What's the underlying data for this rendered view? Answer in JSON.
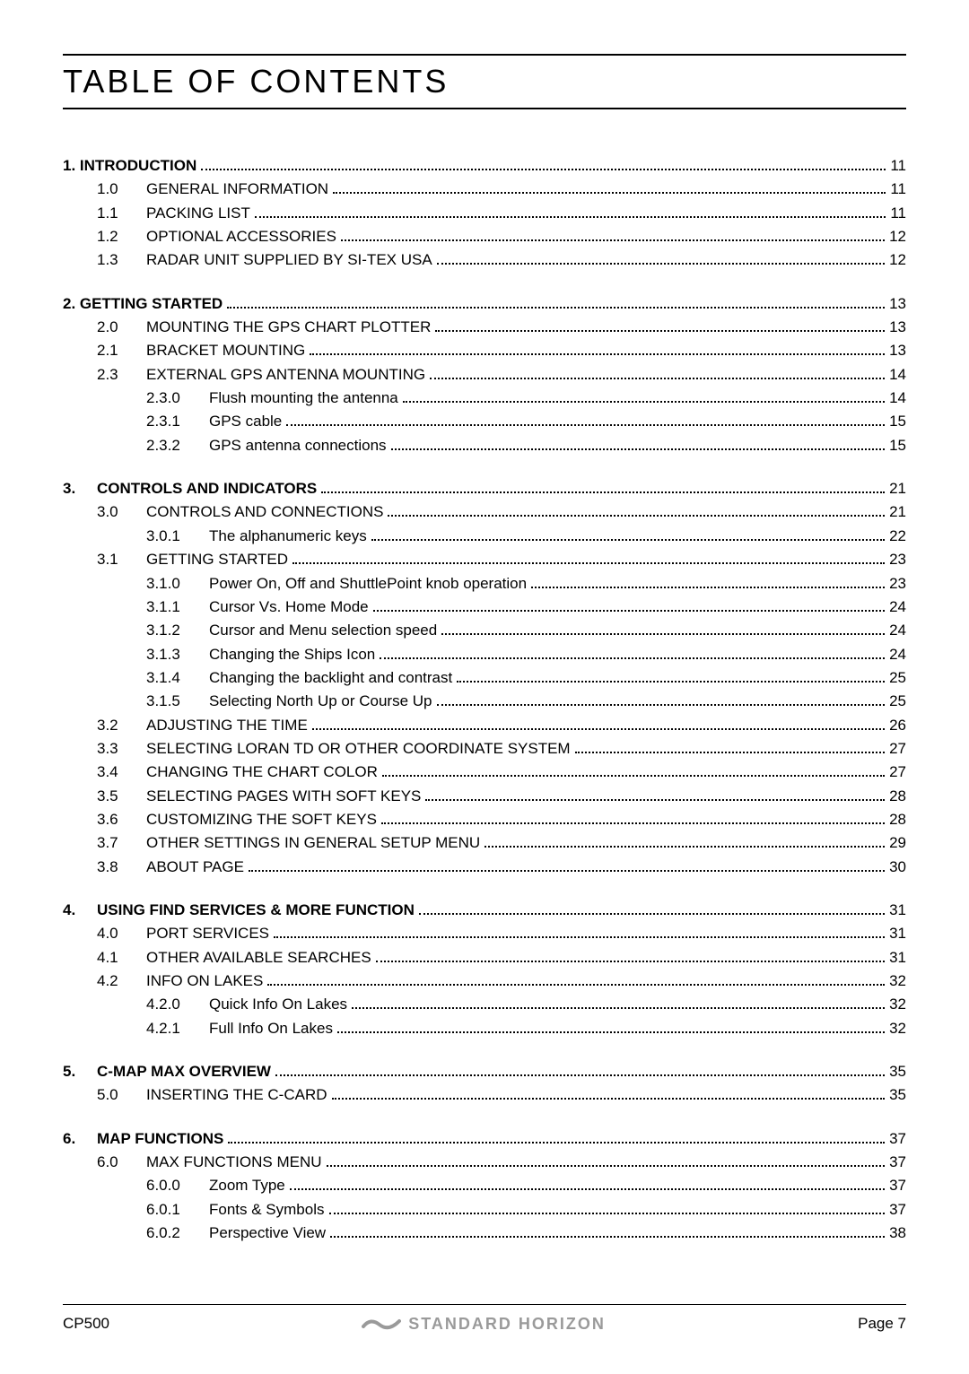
{
  "title": "TABLE OF CONTENTS",
  "footer": {
    "left": "CP500",
    "brand": "STANDARD HORIZON",
    "right": "Page 7"
  },
  "sections": [
    {
      "heading": {
        "num": "",
        "label": "1. INTRODUCTION",
        "page": "11",
        "style": "lvl0"
      },
      "entries": [
        {
          "lvl": 1,
          "num": "1.0",
          "label": "GENERAL INFORMATION",
          "page": "11"
        },
        {
          "lvl": 1,
          "num": "1.1",
          "label": "PACKING LIST",
          "page": "11"
        },
        {
          "lvl": 1,
          "num": "1.2",
          "label": "OPTIONAL ACCESSORIES",
          "page": "12"
        },
        {
          "lvl": 1,
          "num": "1.3",
          "label": "RADAR UNIT SUPPLIED BY SI-TEX USA",
          "page": "12"
        }
      ]
    },
    {
      "heading": {
        "num": "",
        "label": "2. GETTING STARTED",
        "page": "13",
        "style": "lvl0"
      },
      "entries": [
        {
          "lvl": 1,
          "num": "2.0",
          "label": "MOUNTING THE GPS CHART PLOTTER",
          "page": "13"
        },
        {
          "lvl": 1,
          "num": "2.1",
          "label": "BRACKET MOUNTING",
          "page": "13"
        },
        {
          "lvl": 1,
          "num": "2.3",
          "label": "EXTERNAL GPS ANTENNA MOUNTING",
          "page": "14"
        },
        {
          "lvl": 2,
          "num": "2.3.0",
          "label": "Flush mounting the antenna",
          "page": "14"
        },
        {
          "lvl": 2,
          "num": "2.3.1",
          "label": "GPS cable",
          "page": "15"
        },
        {
          "lvl": 2,
          "num": "2.3.2",
          "label": "GPS antenna connections",
          "page": "15"
        }
      ]
    },
    {
      "heading": {
        "num": "3.",
        "label": "CONTROLS AND INDICATORS",
        "page": "21",
        "style": "lvl0b"
      },
      "entries": [
        {
          "lvl": 1,
          "num": "3.0",
          "label": "CONTROLS AND CONNECTIONS",
          "page": "21"
        },
        {
          "lvl": 2,
          "num": "3.0.1",
          "label": "The alphanumeric keys",
          "page": "22"
        },
        {
          "lvl": 1,
          "num": "3.1",
          "label": "GETTING STARTED",
          "page": "23"
        },
        {
          "lvl": 2,
          "num": "3.1.0",
          "label": "Power On, Off and ShuttlePoint knob operation",
          "page": "23"
        },
        {
          "lvl": 2,
          "num": "3.1.1",
          "label": "Cursor Vs. Home Mode",
          "page": "24"
        },
        {
          "lvl": 2,
          "num": "3.1.2",
          "label": "Cursor and Menu selection speed",
          "page": "24"
        },
        {
          "lvl": 2,
          "num": "3.1.3",
          "label": "Changing the Ships Icon",
          "page": "24"
        },
        {
          "lvl": 2,
          "num": "3.1.4",
          "label": "Changing the backlight and contrast",
          "page": "25"
        },
        {
          "lvl": 2,
          "num": "3.1.5",
          "label": "Selecting North Up or Course Up",
          "page": "25"
        },
        {
          "lvl": 1,
          "num": "3.2",
          "label": "ADJUSTING THE TIME",
          "page": "26"
        },
        {
          "lvl": 1,
          "num": "3.3",
          "label": "SELECTING LORAN TD OR OTHER COORDINATE SYSTEM",
          "page": "27"
        },
        {
          "lvl": 1,
          "num": "3.4",
          "label": "CHANGING THE CHART COLOR",
          "page": "27"
        },
        {
          "lvl": 1,
          "num": "3.5",
          "label": "SELECTING PAGES WITH SOFT KEYS",
          "page": "28"
        },
        {
          "lvl": 1,
          "num": "3.6",
          "label": "CUSTOMIZING THE SOFT KEYS",
          "page": "28"
        },
        {
          "lvl": 1,
          "num": "3.7",
          "label": "OTHER SETTINGS IN GENERAL SETUP MENU",
          "page": "29"
        },
        {
          "lvl": 1,
          "num": "3.8",
          "label": "ABOUT PAGE",
          "page": "30"
        }
      ]
    },
    {
      "heading": {
        "num": "4.",
        "label": "USING FIND SERVICES & MORE FUNCTION",
        "page": "31",
        "style": "lvl0b"
      },
      "entries": [
        {
          "lvl": 1,
          "num": "4.0",
          "label": "PORT SERVICES",
          "page": "31"
        },
        {
          "lvl": 1,
          "num": "4.1",
          "label": "OTHER AVAILABLE SEARCHES",
          "page": "31"
        },
        {
          "lvl": 1,
          "num": "4.2",
          "label": "INFO ON LAKES",
          "page": "32"
        },
        {
          "lvl": 2,
          "num": "4.2.0",
          "label": "Quick Info On Lakes",
          "page": "32"
        },
        {
          "lvl": 2,
          "num": "4.2.1",
          "label": "Full Info On Lakes",
          "page": "32"
        }
      ]
    },
    {
      "heading": {
        "num": "5.",
        "label": "C-MAP MAX OVERVIEW",
        "page": "35",
        "style": "lvl0b"
      },
      "entries": [
        {
          "lvl": 1,
          "num": "5.0",
          "label": "INSERTING THE C-CARD",
          "page": "35"
        }
      ]
    },
    {
      "heading": {
        "num": "6.",
        "label": "MAP FUNCTIONS",
        "page": "37",
        "style": "lvl0b"
      },
      "entries": [
        {
          "lvl": 1,
          "num": "6.0",
          "label": "MAX FUNCTIONS MENU",
          "page": "37"
        },
        {
          "lvl": 2,
          "num": "6.0.0",
          "label": "Zoom Type",
          "page": "37"
        },
        {
          "lvl": 2,
          "num": "6.0.1",
          "label": "Fonts & Symbols",
          "page": "37"
        },
        {
          "lvl": 2,
          "num": "6.0.2",
          "label": "Perspective View",
          "page": "38"
        }
      ]
    }
  ]
}
